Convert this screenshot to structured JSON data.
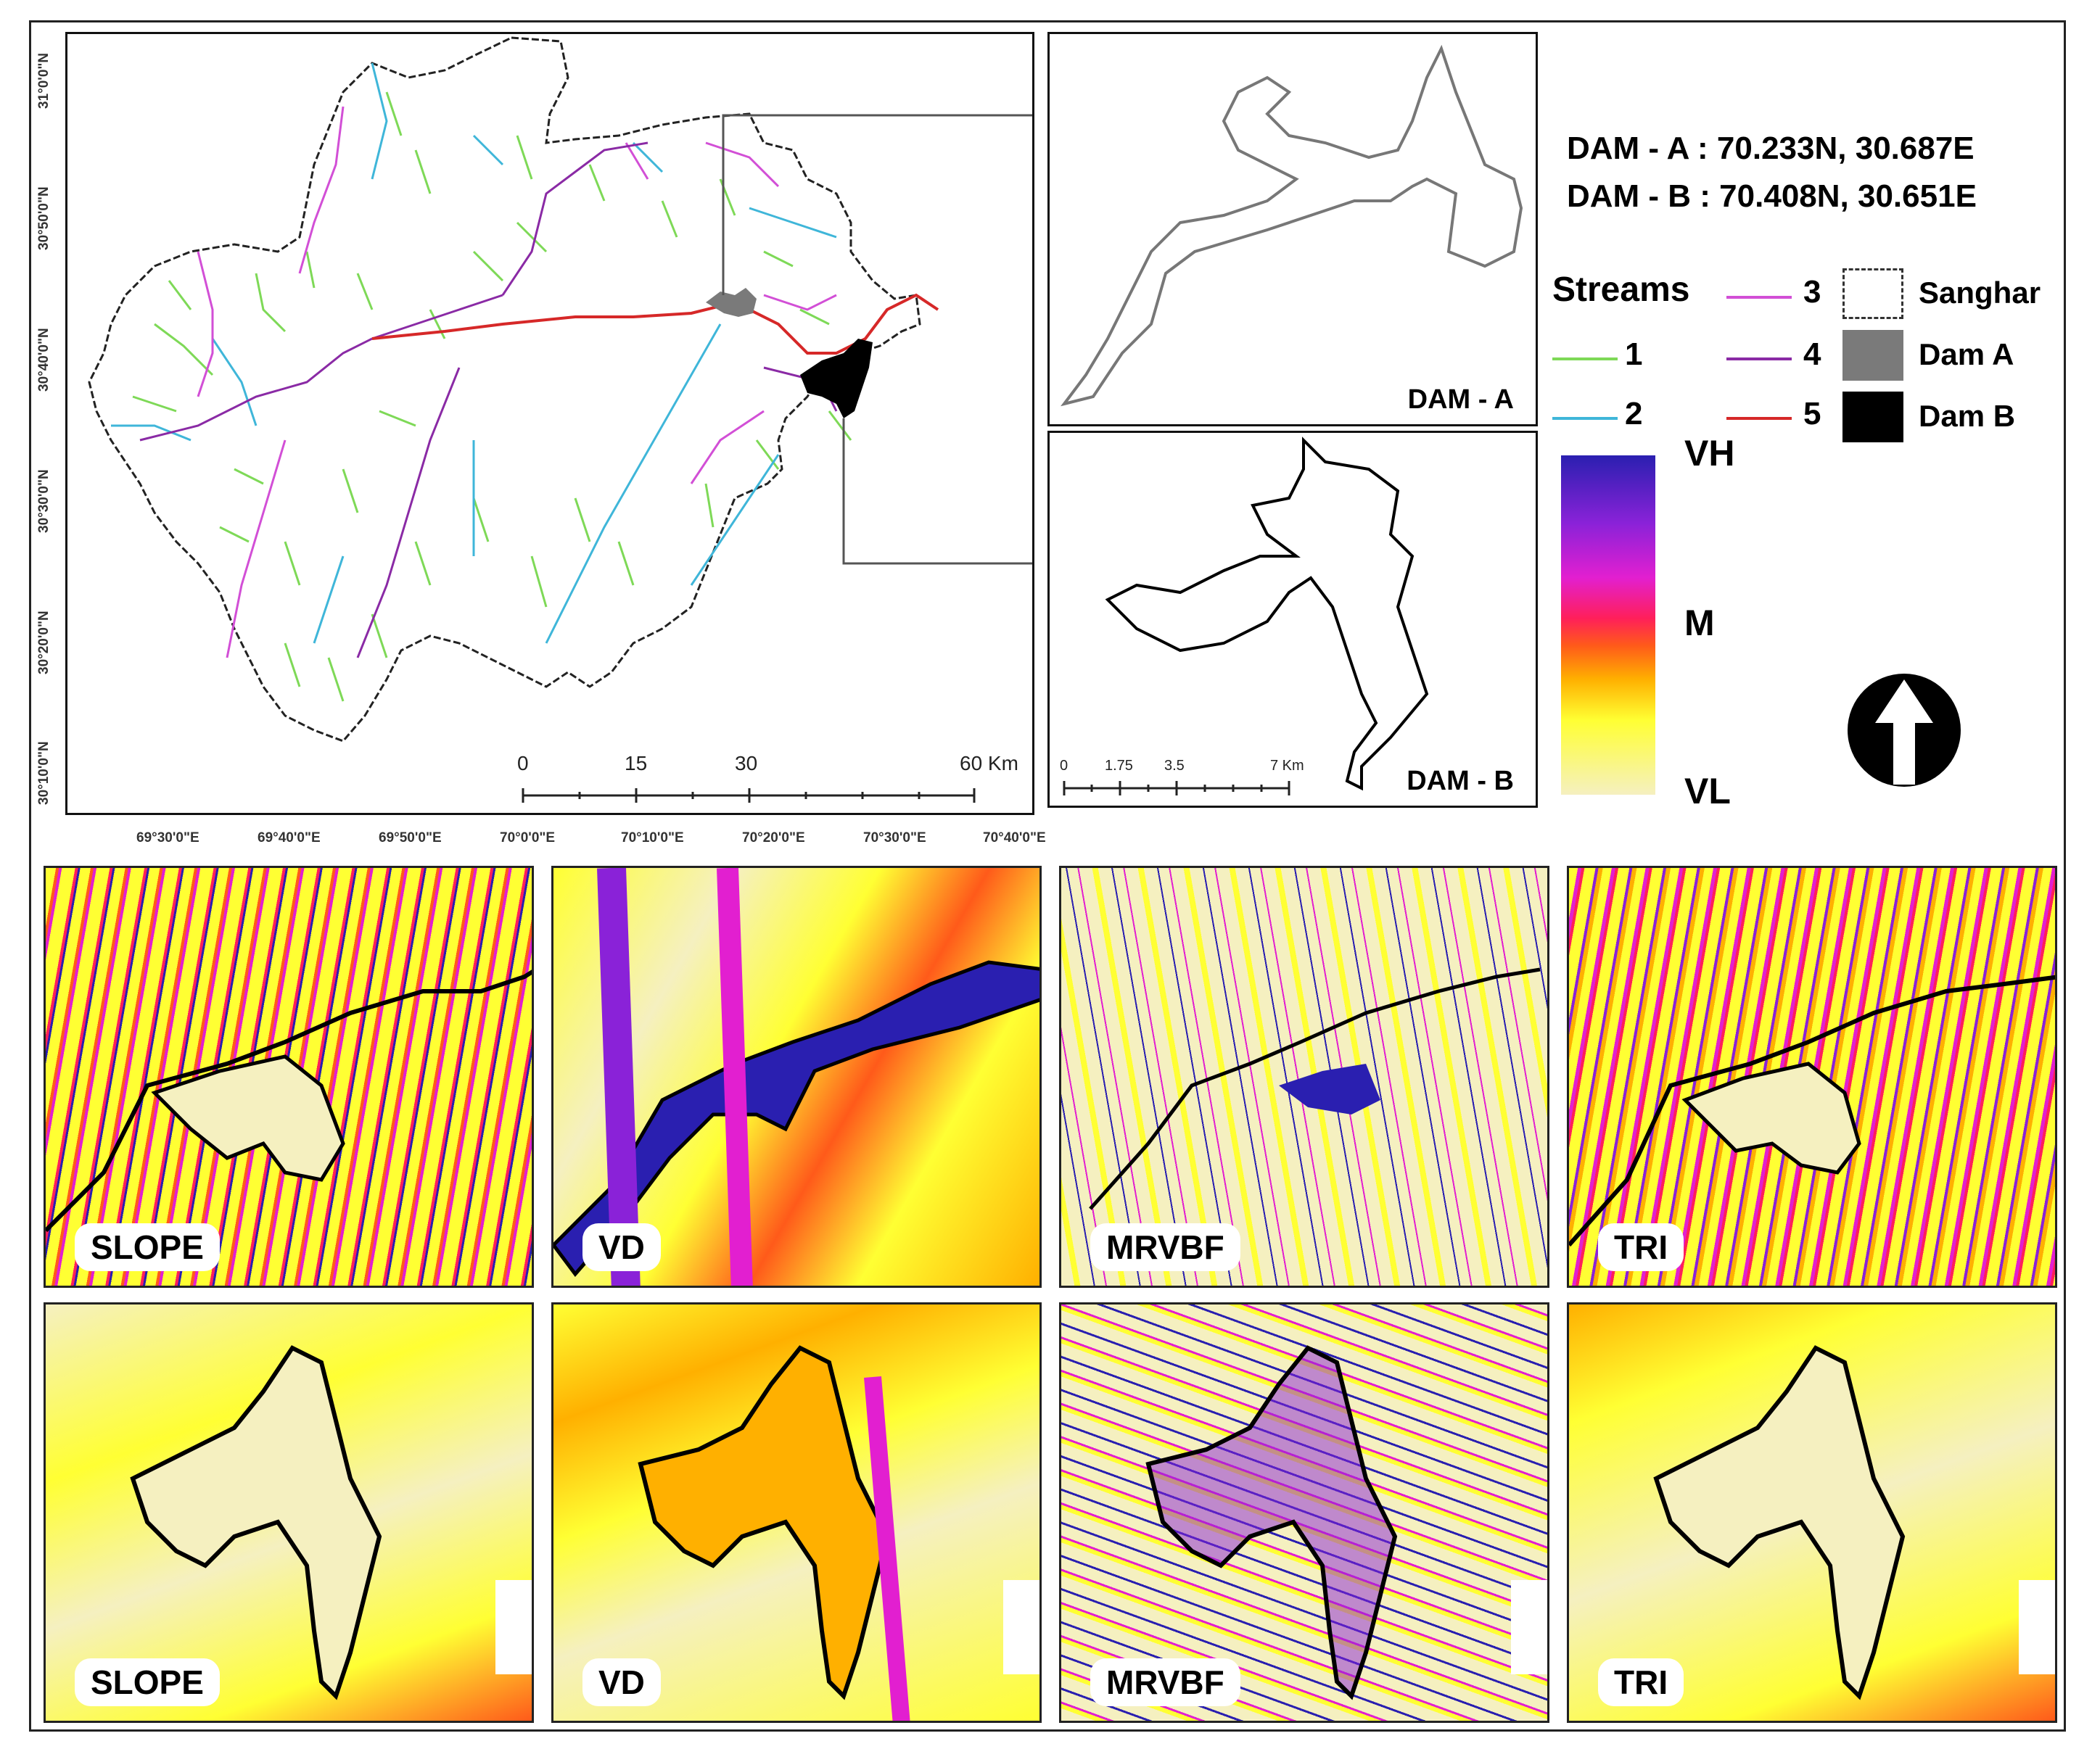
{
  "main_map": {
    "lon_labels": [
      "69°30'0\"E",
      "69°40'0\"E",
      "69°50'0\"E",
      "70°0'0\"E",
      "70°10'0\"E",
      "70°20'0\"E",
      "70°30'0\"E",
      "70°40'0\"E"
    ],
    "lat_labels": [
      "31°0'0\"N",
      "30°50'0\"N",
      "30°40'0\"N",
      "30°30'0\"N",
      "30°20'0\"N",
      "30°10'0\"N"
    ],
    "scale_labels": [
      "0",
      "15",
      "30",
      "60 Km"
    ]
  },
  "inset_a": {
    "label": "DAM - A"
  },
  "inset_b": {
    "label": "DAM - B",
    "scale_labels": [
      "0",
      "1.75",
      "3.5",
      "7 Km"
    ]
  },
  "coordinates": {
    "dam_a": "DAM - A : 70.233N, 30.687E",
    "dam_b": "DAM - B : 70.408N, 30.651E"
  },
  "legend": {
    "title": "Streams",
    "orders": [
      {
        "label": "1",
        "color": "#7ed957"
      },
      {
        "label": "2",
        "color": "#3fb6d9"
      },
      {
        "label": "3",
        "color": "#d24fd6"
      },
      {
        "label": "4",
        "color": "#8a2aa5"
      },
      {
        "label": "5",
        "color": "#d62828"
      }
    ],
    "features": [
      {
        "label": "Sanghar",
        "color": "#ffffff"
      },
      {
        "label": "Dam A",
        "color": "#7a7a7a"
      },
      {
        "label": "Dam B",
        "color": "#000000"
      }
    ]
  },
  "colorbar": {
    "high": "VH",
    "mid": "M",
    "low": "VL",
    "colors": [
      "#2a1fb0",
      "#8a22d8",
      "#e21fd0",
      "#ff1f5a",
      "#ff5a1a",
      "#ffb000",
      "#ffff33",
      "#f5f0c0"
    ]
  },
  "panels_row1": [
    "SLOPE",
    "VD",
    "MRVBF",
    "TRI"
  ],
  "panels_row2": [
    "SLOPE",
    "VD",
    "MRVBF",
    "TRI"
  ]
}
